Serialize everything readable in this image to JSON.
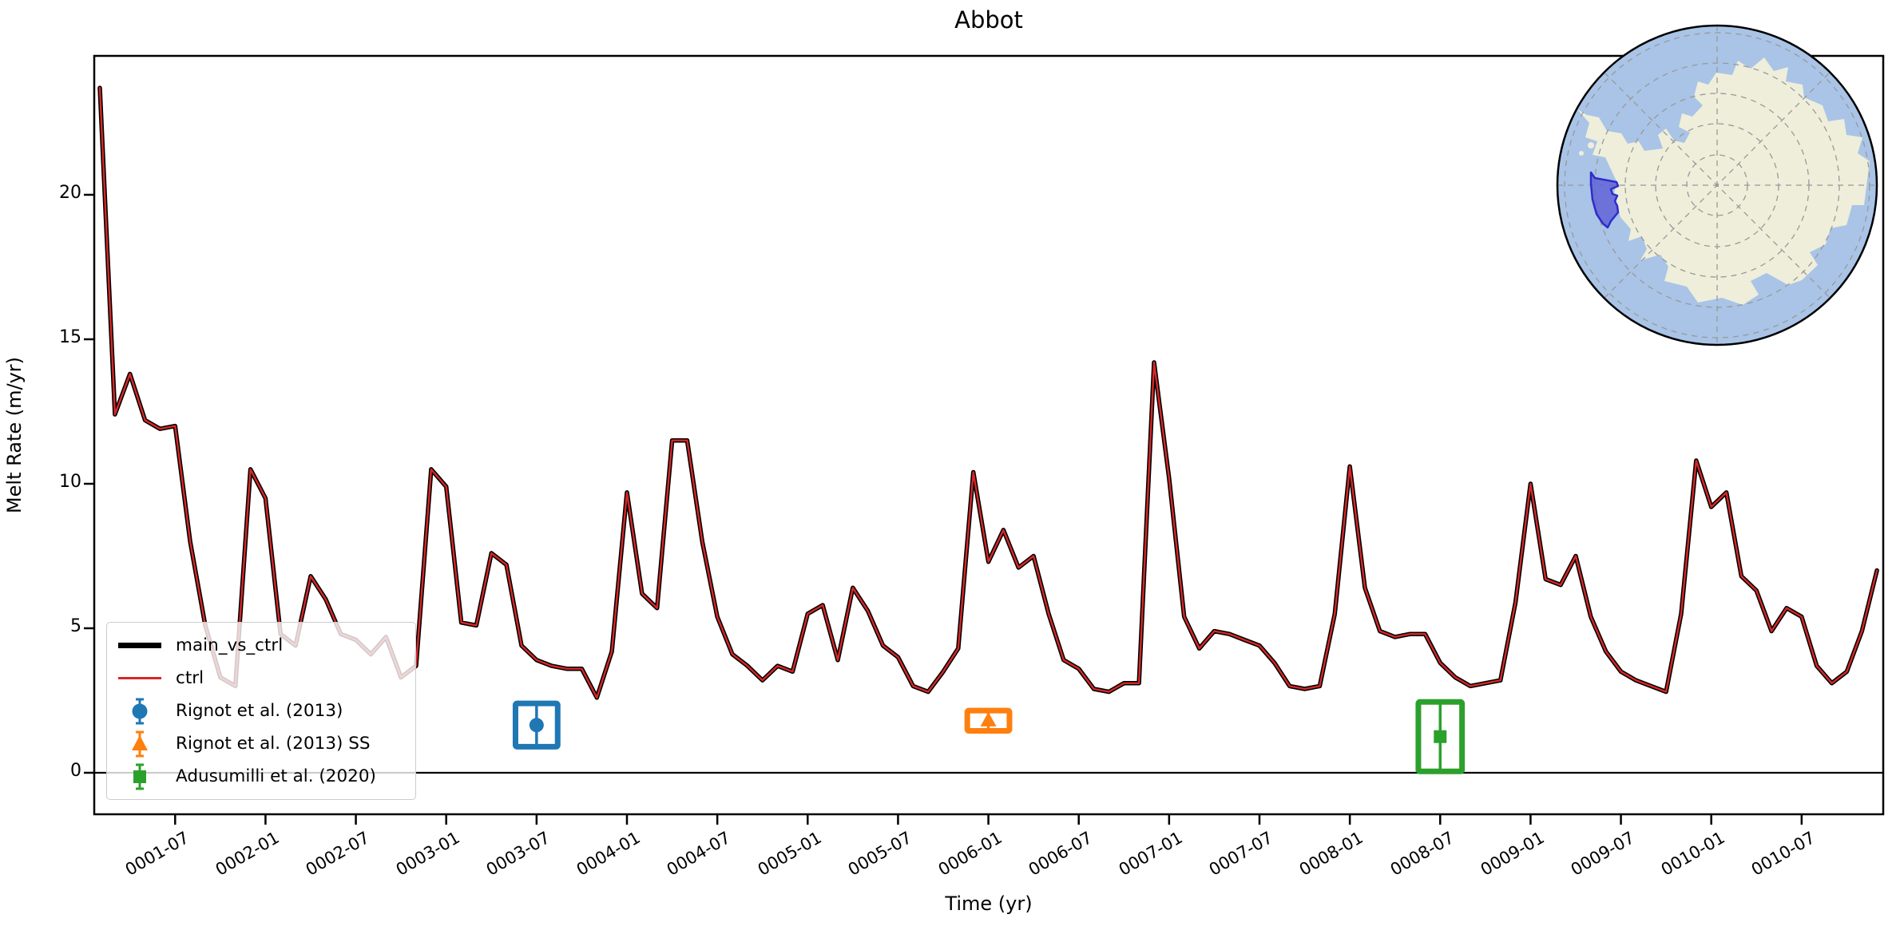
{
  "chart_data": {
    "type": "line",
    "title": "Abbot",
    "xlabel": "Time (yr)",
    "ylabel": "Melt Rate (m/yr)",
    "x_start": "0001-02",
    "x_step_months": 1,
    "x_tick_labels": [
      "0001-07",
      "0002-01",
      "0002-07",
      "0003-01",
      "0003-07",
      "0004-01",
      "0004-07",
      "0005-01",
      "0005-07",
      "0006-01",
      "0006-07",
      "0007-01",
      "0007-07",
      "0008-01",
      "0008-07",
      "0009-01",
      "0009-07",
      "0010-01",
      "0010-07"
    ],
    "y_ticks": [
      0,
      5,
      10,
      15,
      20
    ],
    "ylim": [
      -1.4,
      24.8
    ],
    "grid": false,
    "axhline": 0,
    "legend_position": "lower left",
    "series": [
      {
        "name": "main_vs_ctrl",
        "color": "#000000",
        "linewidth": 5.5,
        "values": [
          23.7,
          12.4,
          13.8,
          12.2,
          11.9,
          12.0,
          8.0,
          5.1,
          3.3,
          3.0,
          10.5,
          9.5,
          4.8,
          4.4,
          6.8,
          6.0,
          4.8,
          4.6,
          4.1,
          4.7,
          3.3,
          3.7,
          10.5,
          9.9,
          5.2,
          5.1,
          7.6,
          7.2,
          4.4,
          3.9,
          3.7,
          3.6,
          3.6,
          2.6,
          4.2,
          9.7,
          6.2,
          5.7,
          11.5,
          11.5,
          8.0,
          5.4,
          4.1,
          3.7,
          3.2,
          3.7,
          3.5,
          5.5,
          5.8,
          3.9,
          6.4,
          5.6,
          4.4,
          4.0,
          3.0,
          2.8,
          3.5,
          4.3,
          10.4,
          7.3,
          8.4,
          7.1,
          7.5,
          5.5,
          3.9,
          3.6,
          2.9,
          2.8,
          3.1,
          3.1,
          14.2,
          10.2,
          5.4,
          4.3,
          4.9,
          4.8,
          4.6,
          4.4,
          3.8,
          3.0,
          2.9,
          3.0,
          5.5,
          10.6,
          6.4,
          4.9,
          4.7,
          4.8,
          4.8,
          3.8,
          3.3,
          3.0,
          3.1,
          3.2,
          5.9,
          10.0,
          6.7,
          6.5,
          7.5,
          5.4,
          4.2,
          3.5,
          3.2,
          3.0,
          2.8,
          5.5,
          10.8,
          9.2,
          9.7,
          6.8,
          6.3,
          4.9,
          5.7,
          5.4,
          3.7,
          3.1,
          3.5,
          4.9,
          7.0
        ]
      },
      {
        "name": "ctrl",
        "color": "#d62728",
        "linewidth": 2.4,
        "values": [
          23.7,
          12.4,
          13.8,
          12.2,
          11.9,
          12.0,
          8.0,
          5.1,
          3.3,
          3.0,
          10.5,
          9.5,
          4.8,
          4.4,
          6.8,
          6.0,
          4.8,
          4.6,
          4.1,
          4.7,
          3.3,
          3.7,
          10.5,
          9.9,
          5.2,
          5.1,
          7.6,
          7.2,
          4.4,
          3.9,
          3.7,
          3.6,
          3.6,
          2.6,
          4.2,
          9.7,
          6.2,
          5.7,
          11.5,
          11.5,
          8.0,
          5.4,
          4.1,
          3.7,
          3.2,
          3.7,
          3.5,
          5.5,
          5.8,
          3.9,
          6.4,
          5.6,
          4.4,
          4.0,
          3.0,
          2.8,
          3.5,
          4.3,
          10.4,
          7.3,
          8.4,
          7.1,
          7.5,
          5.5,
          3.9,
          3.6,
          2.9,
          2.8,
          3.1,
          3.1,
          14.2,
          10.2,
          5.4,
          4.3,
          4.9,
          4.8,
          4.6,
          4.4,
          3.8,
          3.0,
          2.9,
          3.0,
          5.5,
          10.6,
          6.4,
          4.9,
          4.7,
          4.8,
          4.8,
          3.8,
          3.3,
          3.0,
          3.1,
          3.2,
          5.9,
          10.0,
          6.7,
          6.5,
          7.5,
          5.4,
          4.2,
          3.5,
          3.2,
          3.0,
          2.8,
          5.5,
          10.8,
          9.2,
          9.7,
          6.8,
          6.3,
          4.9,
          5.7,
          5.4,
          3.7,
          3.1,
          3.5,
          4.9,
          7.0
        ]
      }
    ],
    "observations": [
      {
        "name": "Rignot et al. (2013)",
        "marker": "circle",
        "color": "#1f77b4",
        "time": "0003-07",
        "value": 1.65,
        "yerr": 0.75,
        "xerr_months": 1.4
      },
      {
        "name": "Rignot et al. (2013) SS",
        "marker": "triangle",
        "color": "#ff7f0e",
        "time": "0006-01",
        "value": 1.8,
        "yerr": 0.35,
        "xerr_months": 1.4
      },
      {
        "name": "Adusumilli et al. (2020)",
        "marker": "square",
        "color": "#2ca02c",
        "time": "0008-07",
        "value": 1.25,
        "yerr": 1.2,
        "xerr_months": 1.45
      }
    ]
  },
  "legend": {
    "items": [
      {
        "label": "main_vs_ctrl"
      },
      {
        "label": "ctrl"
      },
      {
        "label": "Rignot et al. (2013)"
      },
      {
        "label": "Rignot et al. (2013) SS"
      },
      {
        "label": "Adusumilli et al. (2020)"
      }
    ]
  },
  "inset_map": {
    "description": "Antarctica locator map",
    "highlighted_region": "Abbot",
    "ocean_color": "#a9c4e6",
    "land_color": "#eeeedb",
    "highlight_fill": "#5b5bd6",
    "highlight_edge": "#2d2dc9",
    "graticule_color": "#999999"
  }
}
